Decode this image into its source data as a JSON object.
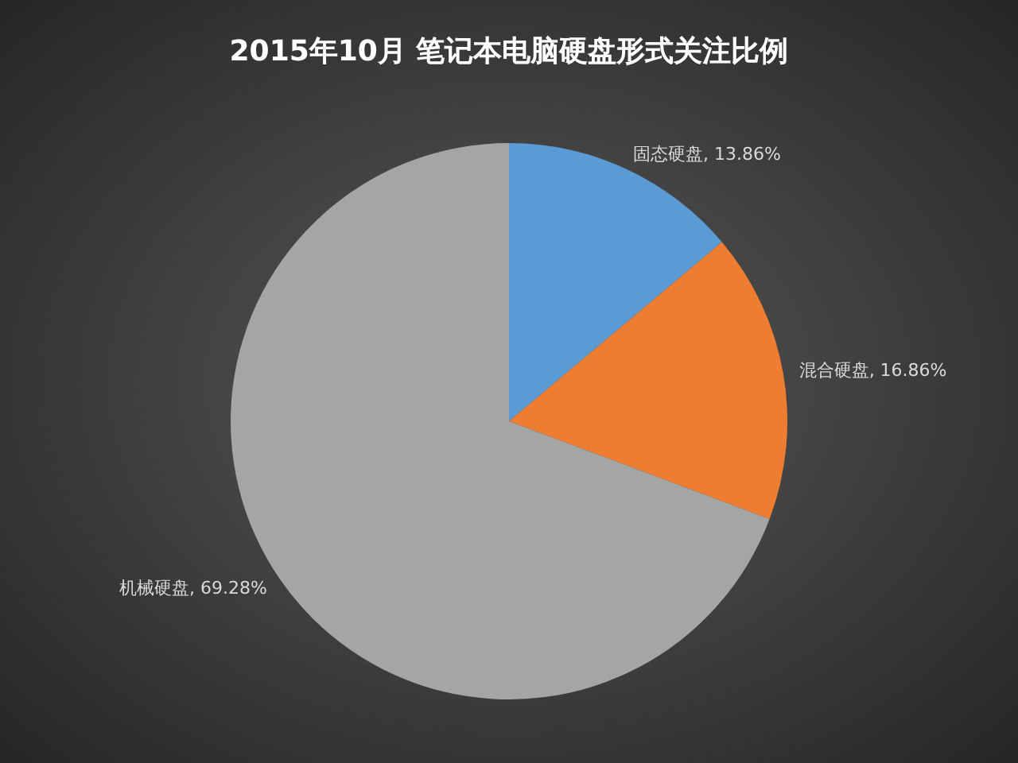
{
  "chart_data": {
    "type": "pie",
    "title": "2015年10月  笔记本电脑硬盘形式关注比例",
    "categories": [
      "固态硬盘",
      "混合硬盘",
      "机械硬盘"
    ],
    "values": [
      13.86,
      16.86,
      69.28
    ],
    "colors": [
      "#5b9bd5",
      "#ed7d31",
      "#a5a5a5"
    ],
    "value_labels": [
      ", 13.86%",
      ", 16.86%",
      ", 69.28%"
    ]
  }
}
